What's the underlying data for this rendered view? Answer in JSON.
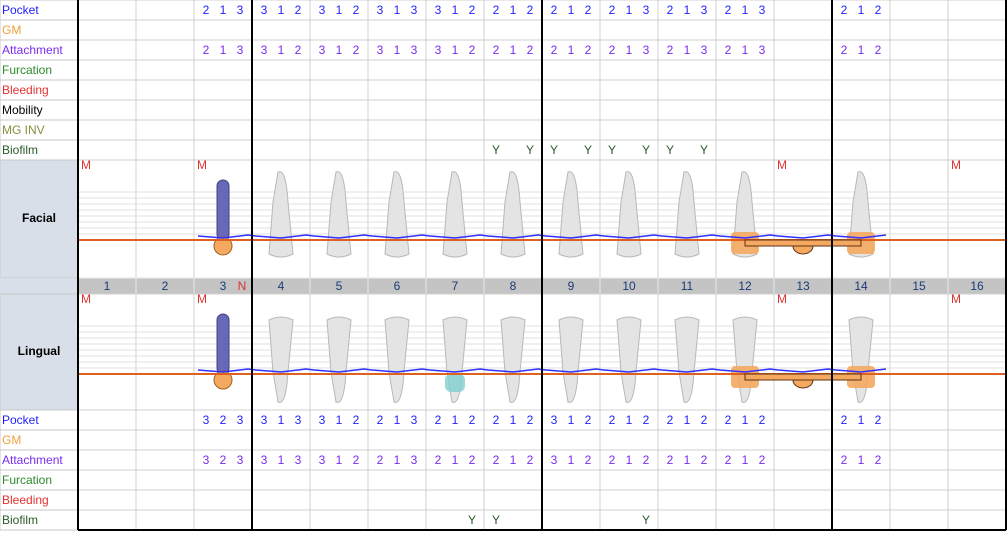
{
  "top_rows": [
    {
      "label": "Pocket",
      "color": "#1f1fff",
      "values": [
        null,
        null,
        [
          2,
          1,
          3
        ],
        [
          3,
          1,
          2
        ],
        [
          3,
          1,
          2
        ],
        [
          3,
          1,
          3
        ],
        [
          3,
          1,
          2
        ],
        [
          2,
          1,
          2
        ],
        [
          2,
          1,
          2
        ],
        [
          2,
          1,
          3
        ],
        [
          2,
          1,
          3
        ],
        [
          2,
          1,
          3
        ],
        null,
        [
          2,
          1,
          2
        ],
        null,
        null
      ]
    },
    {
      "label": "GM",
      "color": "#f0a040"
    },
    {
      "label": "Attachment",
      "color": "#7a2cf0",
      "values": [
        null,
        null,
        [
          2,
          1,
          3
        ],
        [
          3,
          1,
          2
        ],
        [
          3,
          1,
          2
        ],
        [
          3,
          1,
          3
        ],
        [
          3,
          1,
          2
        ],
        [
          2,
          1,
          2
        ],
        [
          2,
          1,
          2
        ],
        [
          2,
          1,
          3
        ],
        [
          2,
          1,
          3
        ],
        [
          2,
          1,
          3
        ],
        null,
        [
          2,
          1,
          2
        ],
        null,
        null
      ]
    },
    {
      "label": "Furcation",
      "color": "#2e8b2e"
    },
    {
      "label": "Bleeding",
      "color": "#e83030"
    },
    {
      "label": "Mobility",
      "color": "#000000"
    },
    {
      "label": "MG INV",
      "color": "#8c8c3c"
    },
    {
      "label": "Biofilm",
      "color": "#2a5a2a",
      "values": [
        null,
        null,
        null,
        null,
        null,
        null,
        null,
        [
          "Y",
          null,
          "Y"
        ],
        [
          "Y",
          null,
          "Y"
        ],
        [
          "Y",
          null,
          "Y"
        ],
        [
          "Y",
          null,
          "Y"
        ],
        null,
        null,
        null,
        null,
        null
      ]
    }
  ],
  "facial": {
    "label": "Facial",
    "markers": [
      "M",
      null,
      "M",
      null,
      null,
      null,
      null,
      null,
      null,
      null,
      null,
      null,
      "M",
      null,
      null,
      "M"
    ]
  },
  "teeth": [
    {
      "number": 1
    },
    {
      "number": 2
    },
    {
      "number": 3,
      "note": "N"
    },
    {
      "number": 4
    },
    {
      "number": 5
    },
    {
      "number": 6
    },
    {
      "number": 7
    },
    {
      "number": 8
    },
    {
      "number": 9
    },
    {
      "number": 10
    },
    {
      "number": 11
    },
    {
      "number": 12
    },
    {
      "number": 13
    },
    {
      "number": 14
    },
    {
      "number": 15
    },
    {
      "number": 16
    }
  ],
  "lingual": {
    "label": "Lingual",
    "markers": [
      "M",
      null,
      "M",
      null,
      null,
      null,
      null,
      null,
      null,
      null,
      null,
      null,
      "M",
      null,
      null,
      "M"
    ]
  },
  "bottom_rows": [
    {
      "label": "Pocket",
      "color": "#1f1fff",
      "values": [
        null,
        null,
        [
          3,
          2,
          3
        ],
        [
          3,
          1,
          3
        ],
        [
          3,
          1,
          2
        ],
        [
          2,
          1,
          3
        ],
        [
          2,
          1,
          2
        ],
        [
          2,
          1,
          2
        ],
        [
          3,
          1,
          2
        ],
        [
          2,
          1,
          2
        ],
        [
          2,
          1,
          2
        ],
        [
          2,
          1,
          2
        ],
        null,
        [
          2,
          1,
          2
        ],
        null,
        null
      ]
    },
    {
      "label": "GM",
      "color": "#f0a040"
    },
    {
      "label": "Attachment",
      "color": "#7a2cf0",
      "values": [
        null,
        null,
        [
          3,
          2,
          3
        ],
        [
          3,
          1,
          3
        ],
        [
          3,
          1,
          2
        ],
        [
          2,
          1,
          3
        ],
        [
          2,
          1,
          2
        ],
        [
          2,
          1,
          2
        ],
        [
          3,
          1,
          2
        ],
        [
          2,
          1,
          2
        ],
        [
          2,
          1,
          2
        ],
        [
          2,
          1,
          2
        ],
        null,
        [
          2,
          1,
          2
        ],
        null,
        null
      ]
    },
    {
      "label": "Furcation",
      "color": "#2e8b2e"
    },
    {
      "label": "Bleeding",
      "color": "#e83030"
    },
    {
      "label": "Biofilm",
      "color": "#2a5a2a",
      "values": [
        null,
        null,
        null,
        null,
        null,
        null,
        [
          null,
          null,
          "Y"
        ],
        [
          "Y",
          null,
          null
        ],
        null,
        [
          null,
          null,
          "Y"
        ],
        null,
        null,
        null,
        null,
        null,
        null
      ]
    }
  ]
}
